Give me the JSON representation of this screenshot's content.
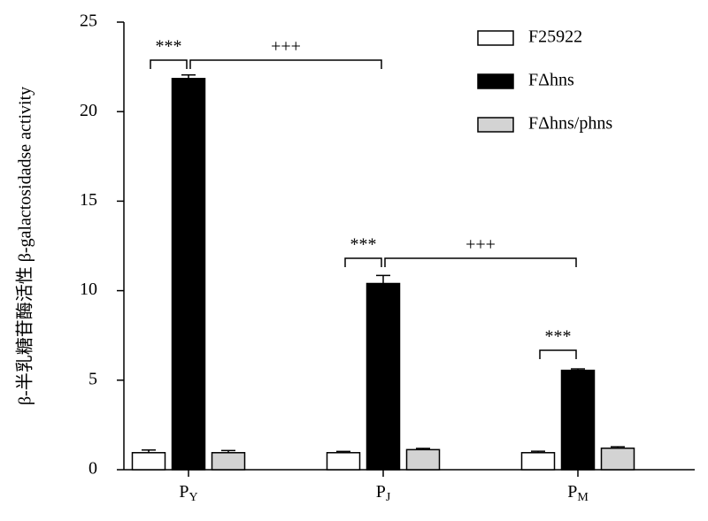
{
  "chart_data": {
    "type": "bar",
    "y_label": "β-半乳糖苷酶活性 β-galactosidadse activity",
    "categories": [
      "PY",
      "PJ",
      "PM"
    ],
    "series": [
      {
        "name": "F25922",
        "color": "#ffffff",
        "values": [
          0.95,
          0.95,
          0.95
        ],
        "errors": [
          0.15,
          0.07,
          0.08
        ]
      },
      {
        "name": "FΔhns",
        "color": "#000000",
        "values": [
          21.85,
          10.4,
          5.55
        ],
        "errors": [
          0.2,
          0.45,
          0.08
        ]
      },
      {
        "name": "FΔhns/phns",
        "color": "#d3d3d3",
        "values": [
          0.95,
          1.12,
          1.2
        ],
        "errors": [
          0.12,
          0.07,
          0.08
        ]
      }
    ],
    "annotations": [
      "***",
      "+++",
      "***",
      "+++",
      "***"
    ],
    "ylim": [
      0,
      25
    ],
    "yticks": [
      0,
      5,
      10,
      15,
      20,
      25
    ]
  }
}
